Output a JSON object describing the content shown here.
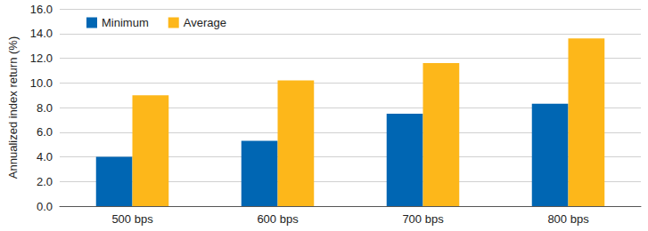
{
  "chart_data": {
    "type": "bar",
    "ylabel": "Annualized index return (%)",
    "categories": [
      "500 bps",
      "600 bps",
      "700 bps",
      "800 bps"
    ],
    "series": [
      {
        "name": "Minimum",
        "color": "#0066b3",
        "values": [
          4.0,
          5.3,
          7.5,
          8.3
        ]
      },
      {
        "name": "Average",
        "color": "#fdb71a",
        "values": [
          9.0,
          10.2,
          11.6,
          13.6
        ]
      }
    ],
    "ylim": [
      0,
      16
    ],
    "yticks": [
      {
        "value": 0,
        "label": "0.0"
      },
      {
        "value": 2,
        "label": "2.0"
      },
      {
        "value": 4,
        "label": "4.0"
      },
      {
        "value": 6,
        "label": "6.0"
      },
      {
        "value": 8,
        "label": "8.0"
      },
      {
        "value": 10,
        "label": "10.0"
      },
      {
        "value": 12,
        "label": "12.0"
      },
      {
        "value": 14,
        "label": "14.0"
      },
      {
        "value": 16,
        "label": "16.0"
      }
    ],
    "grid": true,
    "legend": "upper left"
  }
}
